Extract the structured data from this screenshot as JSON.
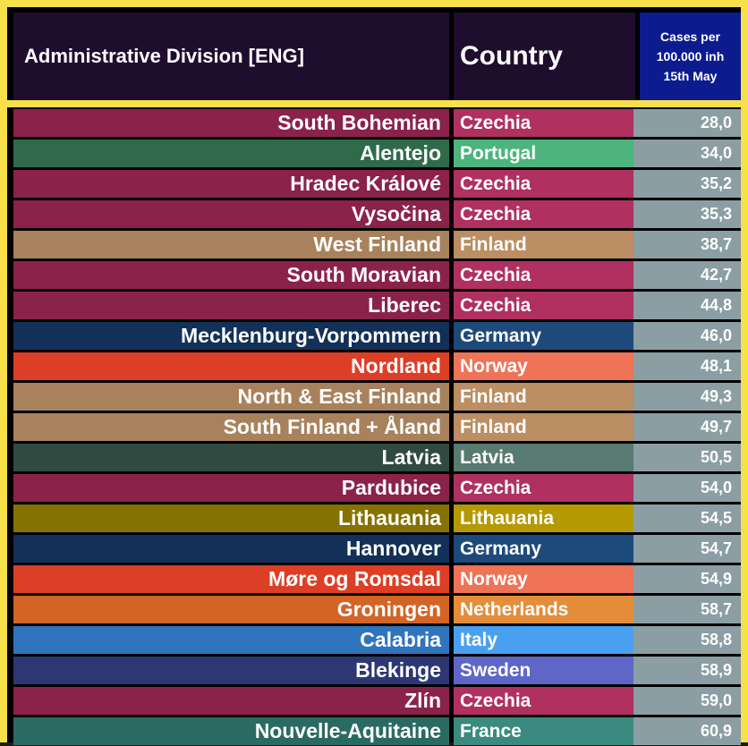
{
  "header": {
    "division": "Administrative Division [ENG]",
    "country": "Country",
    "cases_lines": [
      "Cases per",
      "100.000  inh",
      "15th May"
    ]
  },
  "rows": [
    {
      "division": "South Bohemian",
      "country": "Czechia",
      "value": "28,0",
      "dark": "#8a2249",
      "light": "#b0305f"
    },
    {
      "division": "Alentejo",
      "country": "Portugal",
      "value": "34,0",
      "dark": "#2f6b4a",
      "light": "#4cb57e"
    },
    {
      "division": "Hradec Králové",
      "country": "Czechia",
      "value": "35,2",
      "dark": "#8a2249",
      "light": "#b0305f"
    },
    {
      "division": "Vysočina",
      "country": "Czechia",
      "value": "35,3",
      "dark": "#8a2249",
      "light": "#b0305f"
    },
    {
      "division": "West Finland",
      "country": "Finland",
      "value": "38,7",
      "dark": "#a8825c",
      "light": "#bb8e63"
    },
    {
      "division": "South Moravian",
      "country": "Czechia",
      "value": "42,7",
      "dark": "#8a2249",
      "light": "#b0305f"
    },
    {
      "division": "Liberec",
      "country": "Czechia",
      "value": "44,8",
      "dark": "#8a2249",
      "light": "#b0305f"
    },
    {
      "division": "Mecklenburg-Vorpommern",
      "country": "Germany",
      "value": "46,0",
      "dark": "#123058",
      "light": "#1d4a7a"
    },
    {
      "division": "Nordland",
      "country": "Norway",
      "value": "48,1",
      "dark": "#dd3e26",
      "light": "#ef7356"
    },
    {
      "division": "North & East Finland",
      "country": "Finland",
      "value": "49,3",
      "dark": "#a8825c",
      "light": "#bb8e63"
    },
    {
      "division": "South Finland + Åland",
      "country": "Finland",
      "value": "49,7",
      "dark": "#a8825c",
      "light": "#bb8e63"
    },
    {
      "division": "Latvia",
      "country": "Latvia",
      "value": "50,5",
      "dark": "#304a42",
      "light": "#587a70"
    },
    {
      "division": "Pardubice",
      "country": "Czechia",
      "value": "54,0",
      "dark": "#8a2249",
      "light": "#b0305f"
    },
    {
      "division": "Lithauania",
      "country": "Lithauania",
      "value": "54,5",
      "dark": "#857200",
      "light": "#b49900"
    },
    {
      "division": "Hannover",
      "country": "Germany",
      "value": "54,7",
      "dark": "#123058",
      "light": "#1d4a7a"
    },
    {
      "division": "Møre og Romsdal",
      "country": "Norway",
      "value": "54,9",
      "dark": "#dd3e26",
      "light": "#ef7356"
    },
    {
      "division": "Groningen",
      "country": "Netherlands",
      "value": "58,7",
      "dark": "#d26426",
      "light": "#e48d3a"
    },
    {
      "division": "Calabria",
      "country": "Italy",
      "value": "58,8",
      "dark": "#2f74bd",
      "light": "#4aa0f0"
    },
    {
      "division": "Blekinge",
      "country": "Sweden",
      "value": "58,9",
      "dark": "#2e3774",
      "light": "#5e67c8"
    },
    {
      "division": "Zlín",
      "country": "Czechia",
      "value": "59,0",
      "dark": "#8a2249",
      "light": "#b0305f"
    },
    {
      "division": "Nouvelle-Aquitaine",
      "country": "France",
      "value": "60,9",
      "dark": "#2b6a62",
      "light": "#3a8a7f"
    }
  ]
}
